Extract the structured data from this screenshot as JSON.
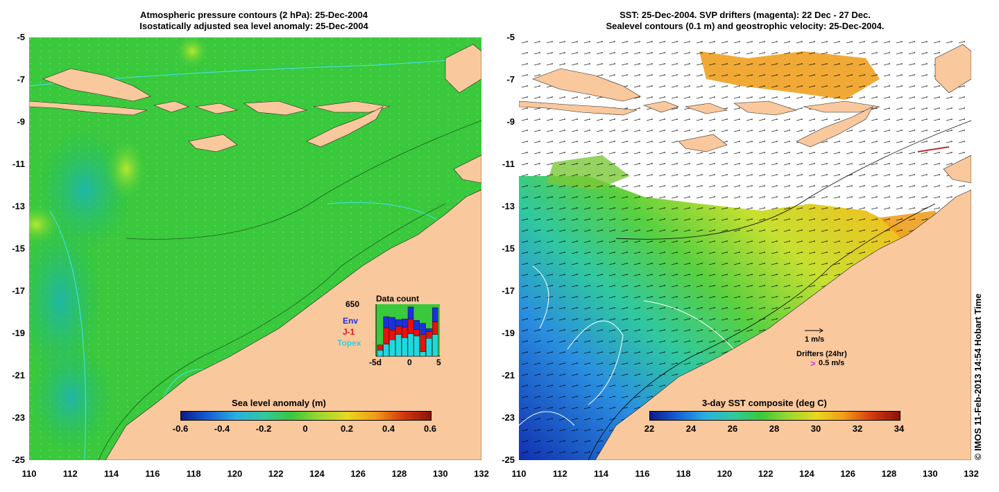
{
  "left_panel": {
    "title_line1": "Atmospheric pressure contours (2 hPa): 25-Dec-2004",
    "title_line2": "Isostatically adjusted sea level anomaly: 25-Dec-2004",
    "colorbar_title": "Sea level anomaly (m)",
    "colorbar_ticks": [
      "-0.6",
      "-0.4",
      "-0.2",
      "0",
      "0.2",
      "0.4",
      "0.6"
    ],
    "inset": {
      "title": "Data count",
      "max_label": "650",
      "legend": [
        {
          "name": "Env",
          "color": "#1c2fe0"
        },
        {
          "name": "J-1",
          "color": "#e81010"
        },
        {
          "name": "Topex",
          "color": "#22d8e0"
        }
      ],
      "x_ticks": [
        "-5d",
        "0",
        "5"
      ],
      "bars": [
        {
          "day": -5,
          "Topex": 80,
          "J-1": 70,
          "Env": 0
        },
        {
          "day": -4,
          "Topex": 160,
          "J-1": 220,
          "Env": 150
        },
        {
          "day": -3,
          "Topex": 220,
          "J-1": 130,
          "Env": 170
        },
        {
          "day": -2,
          "Topex": 290,
          "J-1": 110,
          "Env": 90
        },
        {
          "day": -1,
          "Topex": 250,
          "J-1": 140,
          "Env": 110
        },
        {
          "day": 0,
          "Topex": 300,
          "J-1": 200,
          "Env": 160
        },
        {
          "day": 1,
          "Topex": 270,
          "J-1": 90,
          "Env": 120
        },
        {
          "day": 2,
          "Topex": 60,
          "J-1": 230,
          "Env": 150
        },
        {
          "day": 3,
          "Topex": 240,
          "J-1": 90,
          "Env": 40
        },
        {
          "day": 4,
          "Topex": 290,
          "J-1": 170,
          "Env": 190
        }
      ]
    }
  },
  "right_panel": {
    "title_line1": "SST: 25-Dec-2004. SVP drifters (magenta): 22 Dec - 27 Dec.",
    "title_line2": "Sealevel contours (0.1 m) and geostrophic velocity: 25-Dec-2004.",
    "colorbar_title": "3-day SST composite (deg C)",
    "colorbar_ticks": [
      "22",
      "24",
      "26",
      "28",
      "30",
      "32",
      "34"
    ],
    "legend_velocity": "1 m/s",
    "legend_drifters": "Drifters (24hr)",
    "legend_drift_speed": "0.5 m/s",
    "drifter_color": "#e030e0"
  },
  "axes": {
    "lat_ticks": [
      "-5",
      "-7",
      "-9",
      "-11",
      "-13",
      "-15",
      "-17",
      "-19",
      "-21",
      "-23",
      "-25"
    ],
    "lon_ticks": [
      "110",
      "112",
      "114",
      "116",
      "118",
      "120",
      "122",
      "124",
      "126",
      "128",
      "130",
      "132"
    ]
  },
  "credit": "© IMOS 11-Feb-2013 14:54 Hobart Time",
  "colors": {
    "land": "#f9c89d",
    "ocean_mid": "#2fc83a",
    "cloud": "#ffffff"
  }
}
